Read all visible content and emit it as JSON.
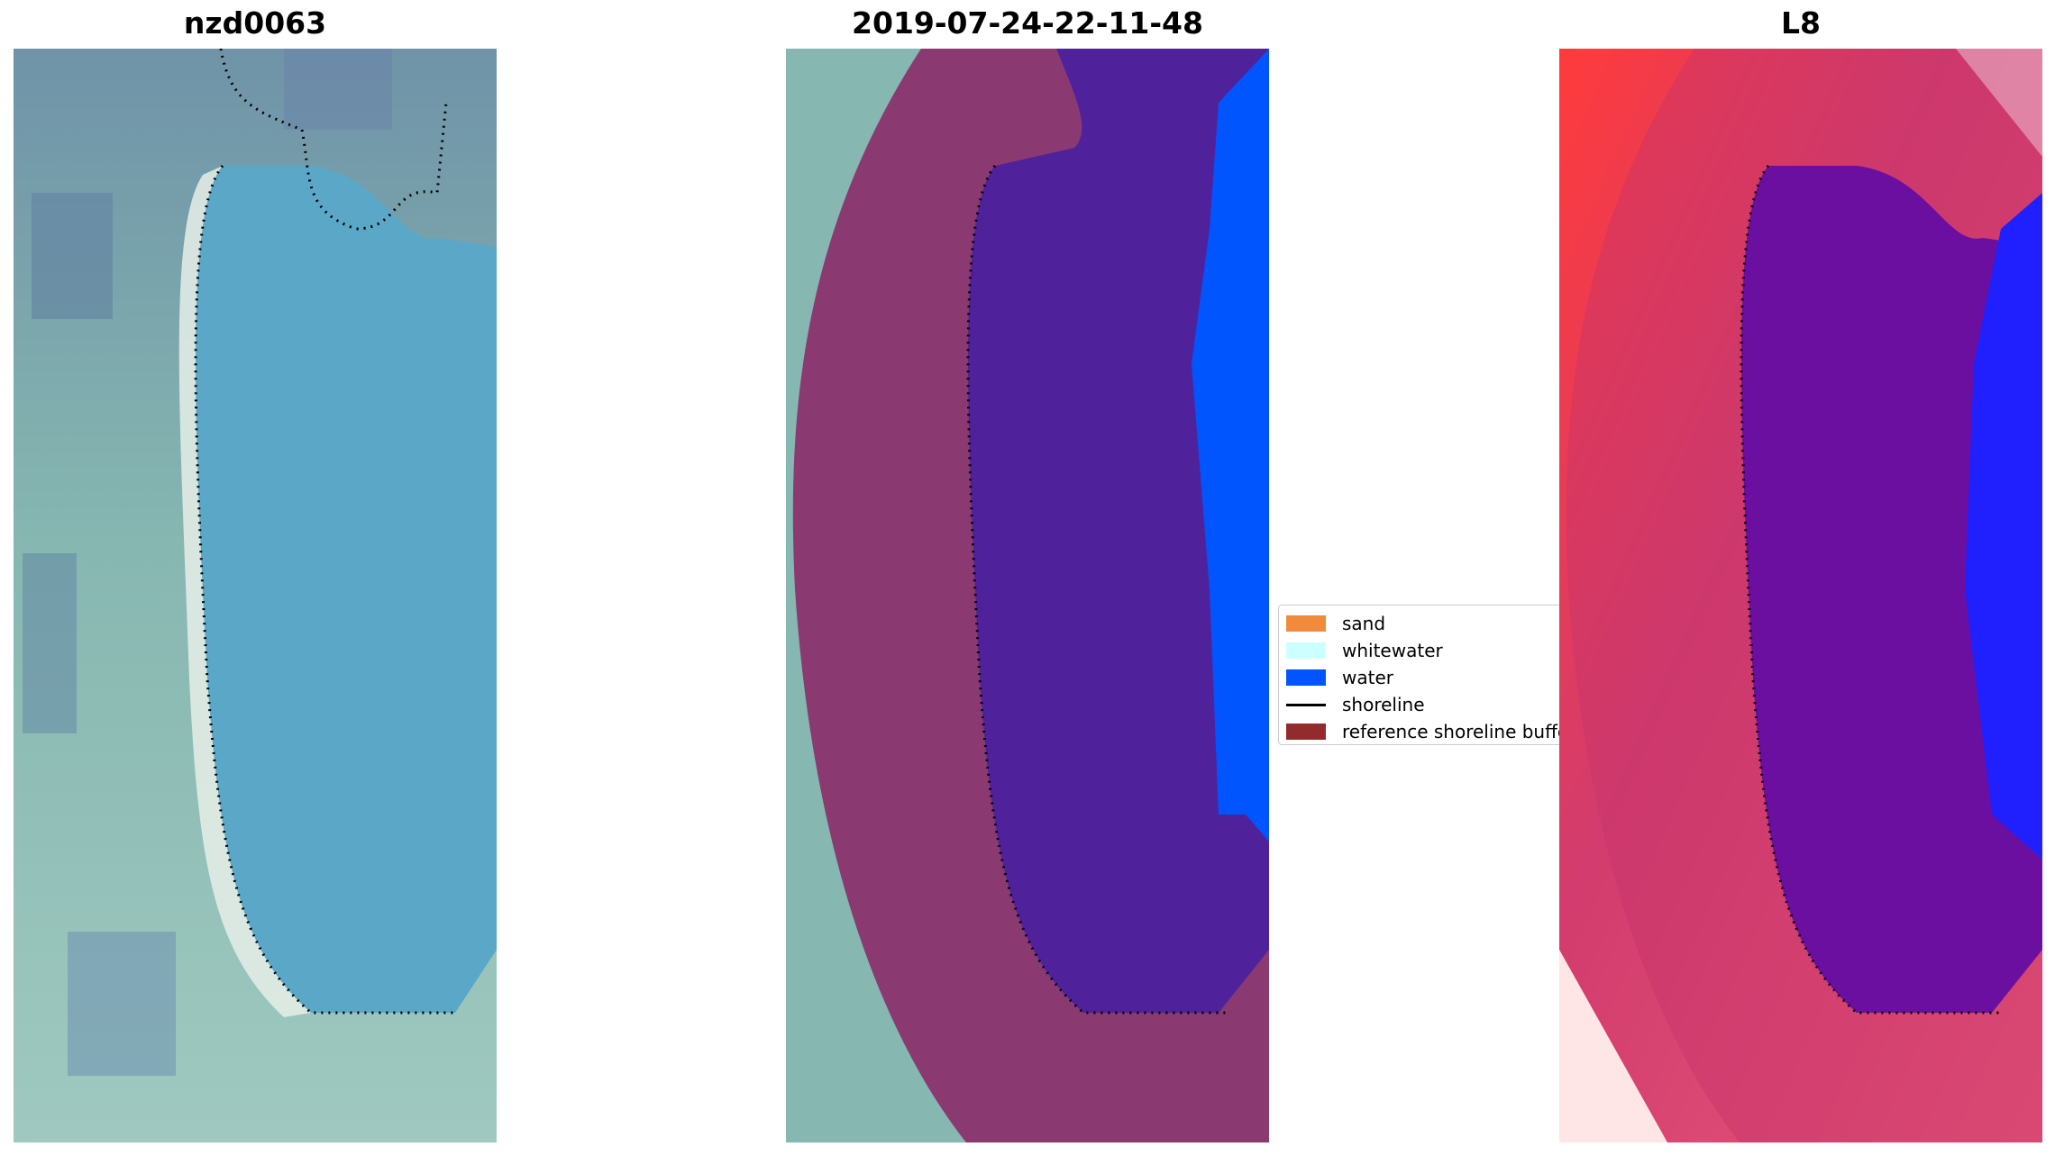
{
  "panels": [
    {
      "title": "nzd0063",
      "style": "rgb"
    },
    {
      "title": "2019-07-24-22-11-48",
      "style": "classified"
    },
    {
      "title": "L8",
      "style": "index"
    }
  ],
  "legend": {
    "items": [
      {
        "label": "sand",
        "color": "#f28a3c",
        "kind": "patch"
      },
      {
        "label": "whitewater",
        "color": "#ccffff",
        "kind": "patch"
      },
      {
        "label": "water",
        "color": "#0055ff",
        "kind": "patch"
      },
      {
        "label": "shoreline",
        "color": "#000000",
        "kind": "line"
      },
      {
        "label": "reference shoreline buffer",
        "color": "#922b2b",
        "kind": "patch"
      }
    ]
  },
  "colors": {
    "rgb_land": "#7fb6b3",
    "rgb_water": "#5aa7c8",
    "rgb_beach": "#e6efe8",
    "buffer_overlay": "#8b2f6a",
    "water_class": "#0055ff",
    "water_in_buffer": "#4f229c",
    "index_land": "#d23c6e",
    "index_bright": "#ff2a2a",
    "index_water": "#6a0fa0",
    "index_sea": "#2020ff"
  }
}
